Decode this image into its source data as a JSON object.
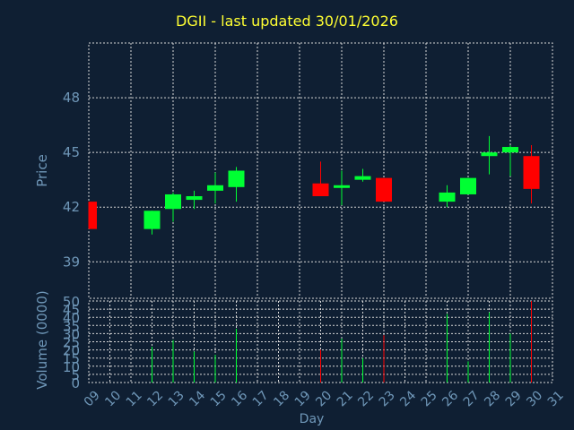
{
  "chart_data": {
    "type": "candlestick",
    "title": "DGII - last updated 30/01/2026",
    "xlabel": "Day",
    "x_ticks": [
      "09",
      "10",
      "11",
      "12",
      "13",
      "14",
      "15",
      "16",
      "17",
      "18",
      "19",
      "20",
      "21",
      "22",
      "23",
      "24",
      "25",
      "26",
      "27",
      "28",
      "29",
      "30",
      "31"
    ],
    "price_panel": {
      "ylabel": "Price",
      "ylim": [
        37.0,
        51.0
      ],
      "yticks": [
        39,
        42,
        45,
        48
      ],
      "candles": [
        {
          "day": "09",
          "open": 42.3,
          "high": 42.3,
          "low": 40.8,
          "close": 40.8
        },
        {
          "day": "12",
          "open": 40.8,
          "high": 41.8,
          "low": 40.5,
          "close": 41.8
        },
        {
          "day": "13",
          "open": 41.9,
          "high": 42.8,
          "low": 41.2,
          "close": 42.7
        },
        {
          "day": "14",
          "open": 42.4,
          "high": 42.9,
          "low": 41.9,
          "close": 42.6
        },
        {
          "day": "15",
          "open": 42.9,
          "high": 43.9,
          "low": 42.2,
          "close": 43.2
        },
        {
          "day": "16",
          "open": 43.1,
          "high": 44.2,
          "low": 42.3,
          "close": 44.0
        },
        {
          "day": "20",
          "open": 43.3,
          "high": 44.5,
          "low": 42.6,
          "close": 42.6
        },
        {
          "day": "21",
          "open": 43.1,
          "high": 44.0,
          "low": 42.1,
          "close": 43.2
        },
        {
          "day": "22",
          "open": 43.5,
          "high": 44.1,
          "low": 43.4,
          "close": 43.7
        },
        {
          "day": "23",
          "open": 43.6,
          "high": 43.6,
          "low": 42.3,
          "close": 42.3
        },
        {
          "day": "26",
          "open": 42.3,
          "high": 43.2,
          "low": 42.0,
          "close": 42.8
        },
        {
          "day": "27",
          "open": 42.7,
          "high": 43.6,
          "low": 42.7,
          "close": 43.6
        },
        {
          "day": "28",
          "open": 44.8,
          "high": 45.9,
          "low": 43.8,
          "close": 45.0
        },
        {
          "day": "29",
          "open": 45.0,
          "high": 45.4,
          "low": 43.7,
          "close": 45.3
        },
        {
          "day": "30",
          "open": 44.8,
          "high": 45.4,
          "low": 42.2,
          "close": 43.0
        }
      ]
    },
    "volume_panel": {
      "ylabel": "Volume (0000)",
      "ylim": [
        0,
        50
      ],
      "yticks": [
        0,
        5,
        10,
        15,
        20,
        25,
        30,
        35,
        40,
        45,
        50
      ],
      "bars": [
        {
          "day": "12",
          "value": 22,
          "direction": "up"
        },
        {
          "day": "13",
          "value": 26,
          "direction": "up"
        },
        {
          "day": "14",
          "value": 19,
          "direction": "up"
        },
        {
          "day": "15",
          "value": 17,
          "direction": "up"
        },
        {
          "day": "16",
          "value": 33,
          "direction": "up"
        },
        {
          "day": "20",
          "value": 20,
          "direction": "down"
        },
        {
          "day": "21",
          "value": 27,
          "direction": "up"
        },
        {
          "day": "22",
          "value": 15,
          "direction": "up"
        },
        {
          "day": "23",
          "value": 29,
          "direction": "down"
        },
        {
          "day": "26",
          "value": 42,
          "direction": "up"
        },
        {
          "day": "27",
          "value": 13,
          "direction": "up"
        },
        {
          "day": "28",
          "value": 43,
          "direction": "up"
        },
        {
          "day": "29",
          "value": 30,
          "direction": "up"
        },
        {
          "day": "30",
          "value": 50,
          "direction": "down"
        }
      ]
    },
    "colors": {
      "background": "#0f1f33",
      "grid": "#d8d8d8",
      "up": "#00ff33",
      "down": "#ff0000",
      "title": "#ffff33",
      "axis_text": "#6f97b8"
    }
  }
}
